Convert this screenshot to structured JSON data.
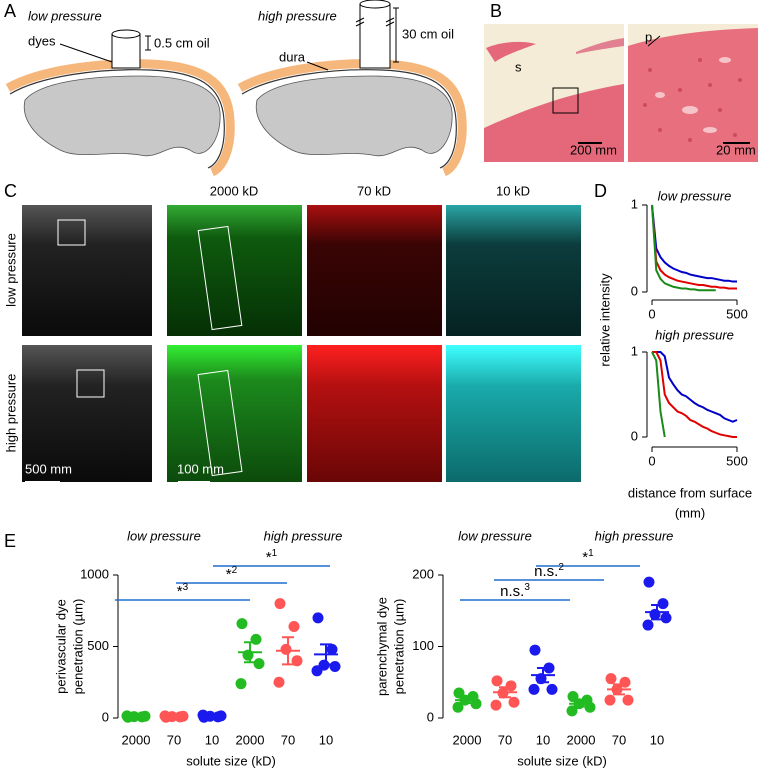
{
  "panel_labels": [
    "A",
    "B",
    "C",
    "D",
    "E"
  ],
  "panel_a": {
    "left_title": "low pressure",
    "right_title": "high pressure",
    "dyes": "dyes",
    "low_oil": "0.5 cm oil",
    "dura": "dura",
    "high_oil": "30 cm oil"
  },
  "panel_b": {
    "labels": [
      "s",
      "p"
    ],
    "scale_bars": [
      "200 mm",
      "20 mm"
    ]
  },
  "panel_c": {
    "row_labels": [
      "low pressure",
      "high pressure"
    ],
    "column_labels": [
      "2000 kD",
      "70 kD",
      "10 kD"
    ],
    "scale_bars": [
      "500 mm",
      "100 mm"
    ]
  },
  "panel_d": {
    "ylabel": "relative intensity",
    "xlabel": [
      "distance from surface",
      "(mm)"
    ]
  },
  "chart_data": [
    {
      "type": "line",
      "title": "low pressure",
      "x": [
        0,
        25,
        50,
        75,
        100,
        125,
        150,
        175,
        200,
        225,
        250,
        275,
        300,
        325,
        350,
        375,
        400,
        425,
        450,
        475,
        500
      ],
      "xlim": [
        0,
        500
      ],
      "xticks": [
        0,
        500
      ],
      "ylim": [
        0,
        1
      ],
      "yticks": [
        0,
        1
      ],
      "series": [
        {
          "color": "#0000c8",
          "values": [
            1,
            0.5,
            0.4,
            0.34,
            0.3,
            0.27,
            0.25,
            0.23,
            0.22,
            0.2,
            0.19,
            0.18,
            0.17,
            0.16,
            0.16,
            0.15,
            0.14,
            0.13,
            0.13,
            0.12,
            0.12
          ]
        },
        {
          "color": "#e00000",
          "values": [
            1,
            0.35,
            0.25,
            0.2,
            0.17,
            0.15,
            0.13,
            0.12,
            0.11,
            0.1,
            0.09,
            0.08,
            0.08,
            0.07,
            0.06,
            0.06,
            0.05,
            0.05,
            0.04,
            0.04,
            0.04
          ]
        },
        {
          "color": "#1a8a1a",
          "values": [
            1,
            0.25,
            0.15,
            0.1,
            0.08,
            0.06,
            0.05,
            0.04,
            0.04,
            0.03,
            0.03,
            0.02,
            0.02,
            0.02,
            0.02,
            0.02,
            null,
            null,
            null,
            null,
            null
          ]
        }
      ]
    },
    {
      "type": "line",
      "title": "high pressure",
      "x": [
        0,
        25,
        50,
        75,
        100,
        125,
        150,
        175,
        200,
        225,
        250,
        275,
        300,
        325,
        350,
        375,
        400,
        425,
        450,
        475,
        500
      ],
      "xlim": [
        0,
        500
      ],
      "xticks": [
        0,
        500
      ],
      "ylim": [
        0,
        1
      ],
      "yticks": [
        0,
        1
      ],
      "series": [
        {
          "color": "#0000c8",
          "values": [
            1,
            1,
            1,
            0.95,
            0.7,
            0.62,
            0.55,
            0.5,
            0.48,
            0.44,
            0.4,
            0.37,
            0.35,
            0.32,
            0.3,
            0.28,
            0.26,
            0.22,
            0.2,
            0.18,
            0.2
          ]
        },
        {
          "color": "#e00000",
          "values": [
            1,
            1,
            0.9,
            0.5,
            0.4,
            0.35,
            0.3,
            0.28,
            0.25,
            0.2,
            0.18,
            0.15,
            0.12,
            0.1,
            0.07,
            0.05,
            0.03,
            0.02,
            0.01,
            0,
            0
          ]
        },
        {
          "color": "#1a8a1a",
          "values": [
            1,
            0.9,
            0.3,
            0,
            null,
            null,
            null,
            null,
            null,
            null,
            null,
            null,
            null,
            null,
            null,
            null,
            null,
            null,
            null,
            null,
            null
          ]
        }
      ]
    },
    {
      "type": "dot",
      "groups": [
        "low pressure",
        "high pressure"
      ],
      "categories": [
        "2000",
        "70",
        "10",
        "2000",
        "70",
        "10"
      ],
      "colors": [
        "#22bb22",
        "#ff5555",
        "#1a1aee",
        "#22bb22",
        "#ff5555",
        "#1a1aee"
      ],
      "points": [
        [
          5,
          8,
          10,
          12,
          15
        ],
        [
          5,
          8,
          10,
          12,
          15
        ],
        [
          5,
          8,
          12,
          15,
          20
        ],
        [
          660,
          550,
          440,
          380,
          240
        ],
        [
          800,
          640,
          480,
          400,
          250
        ],
        [
          700,
          480,
          370,
          360,
          330
        ]
      ],
      "means": [
        10,
        10,
        12,
        460,
        470,
        445
      ],
      "sems": [
        2,
        2,
        3,
        70,
        95,
        70
      ],
      "ylim": [
        0,
        1000
      ],
      "yticks": [
        0,
        500,
        1000
      ],
      "ylabel": [
        "perivascular dye",
        "penetration (µm)"
      ],
      "xlabel": "solute size (kD)",
      "significance": [
        {
          "text": "*",
          "sup": "1"
        },
        {
          "text": "*",
          "sup": "2"
        },
        {
          "text": "*",
          "sup": "3"
        }
      ]
    },
    {
      "type": "dot",
      "groups": [
        "low pressure",
        "high pressure"
      ],
      "categories": [
        "2000",
        "70",
        "10",
        "2000",
        "70",
        "10"
      ],
      "colors": [
        "#22bb22",
        "#ff5555",
        "#1a1aee",
        "#22bb22",
        "#ff5555",
        "#1a1aee"
      ],
      "points": [
        [
          35,
          30,
          25,
          20,
          15
        ],
        [
          52,
          45,
          35,
          22,
          18
        ],
        [
          95,
          70,
          55,
          40,
          40
        ],
        [
          30,
          25,
          20,
          15,
          10
        ],
        [
          55,
          50,
          40,
          25,
          25
        ],
        [
          190,
          160,
          145,
          140,
          130
        ]
      ],
      "means": [
        25,
        36,
        60,
        20,
        40,
        148
      ],
      "sems": [
        4,
        7,
        10,
        4,
        7,
        10
      ],
      "ylim": [
        0,
        200
      ],
      "yticks": [
        0,
        100,
        200
      ],
      "ylabel": [
        "parenchymal dye",
        "penetration (µm)"
      ],
      "xlabel": "solute size (kD)",
      "significance": [
        {
          "text": "*",
          "sup": "1"
        },
        {
          "text": "n.s.",
          "sup": "2"
        },
        {
          "text": "n.s.",
          "sup": "3"
        }
      ]
    }
  ]
}
